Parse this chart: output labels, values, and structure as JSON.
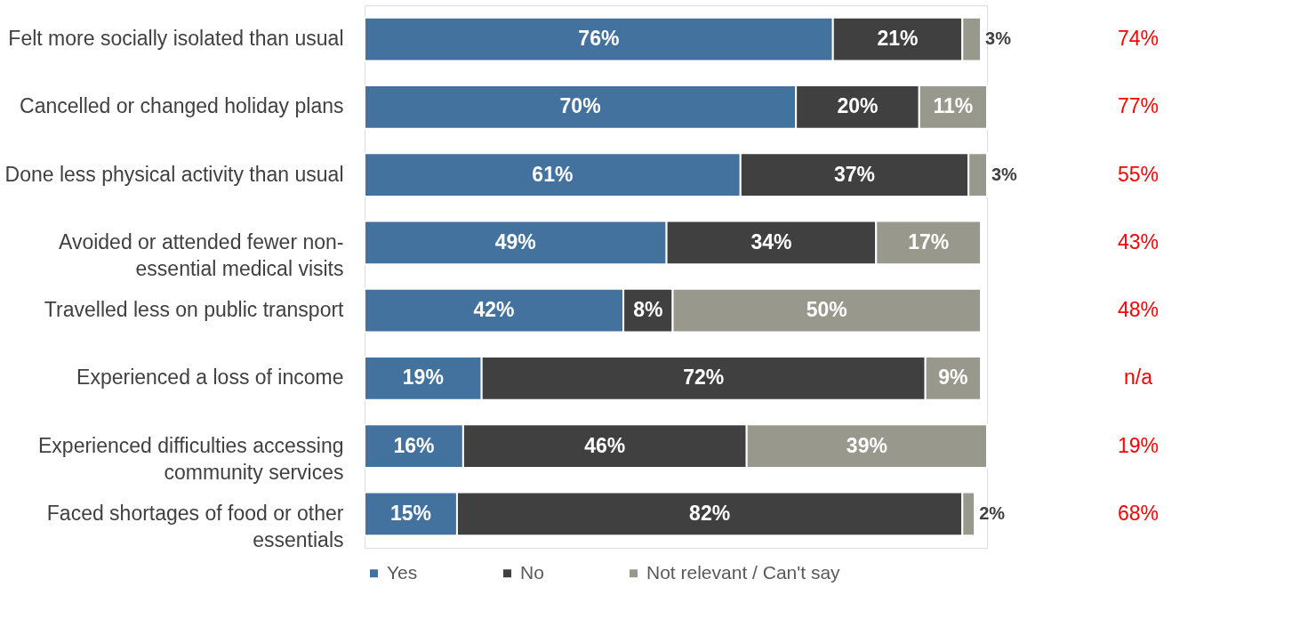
{
  "chart_data": {
    "type": "bar",
    "orientation": "horizontal",
    "stacked": true,
    "tick_labels": "y",
    "grid": false,
    "legend": "bottom",
    "categories": [
      "Felt more socially isolated than usual",
      "Cancelled or changed holiday plans",
      "Done less physical activity than usual",
      "Avoided or attended fewer non-essential medical visits",
      "Travelled less on public transport",
      "Experienced a loss of income",
      "Experienced difficulties accessing community services",
      "Faced shortages of food or other essentials"
    ],
    "series": [
      {
        "name": "Yes",
        "color": "#44729f",
        "values": [
          76,
          70,
          61,
          49,
          42,
          19,
          16,
          15
        ],
        "value_labels": [
          "76%",
          "70%",
          "61%",
          "49%",
          "42%",
          "19%",
          "16%",
          "15%"
        ]
      },
      {
        "name": "No",
        "color": "#404040",
        "values": [
          21,
          20,
          37,
          34,
          8,
          72,
          46,
          82
        ],
        "value_labels": [
          "21%",
          "20%",
          "37%",
          "34%",
          "8%",
          "72%",
          "46%",
          "82%"
        ]
      },
      {
        "name": "Not relevant / Can't say",
        "color": "#99988c",
        "values": [
          3,
          11,
          3,
          17,
          50,
          9,
          39,
          2
        ],
        "value_labels": [
          "3%",
          "11%",
          "3%",
          "17%",
          "50%",
          "9%",
          "39%",
          "2%"
        ]
      }
    ],
    "annotations": [
      "74%",
      "77%",
      "55%",
      "43%",
      "48%",
      "n/a",
      "19%",
      "68%"
    ]
  }
}
